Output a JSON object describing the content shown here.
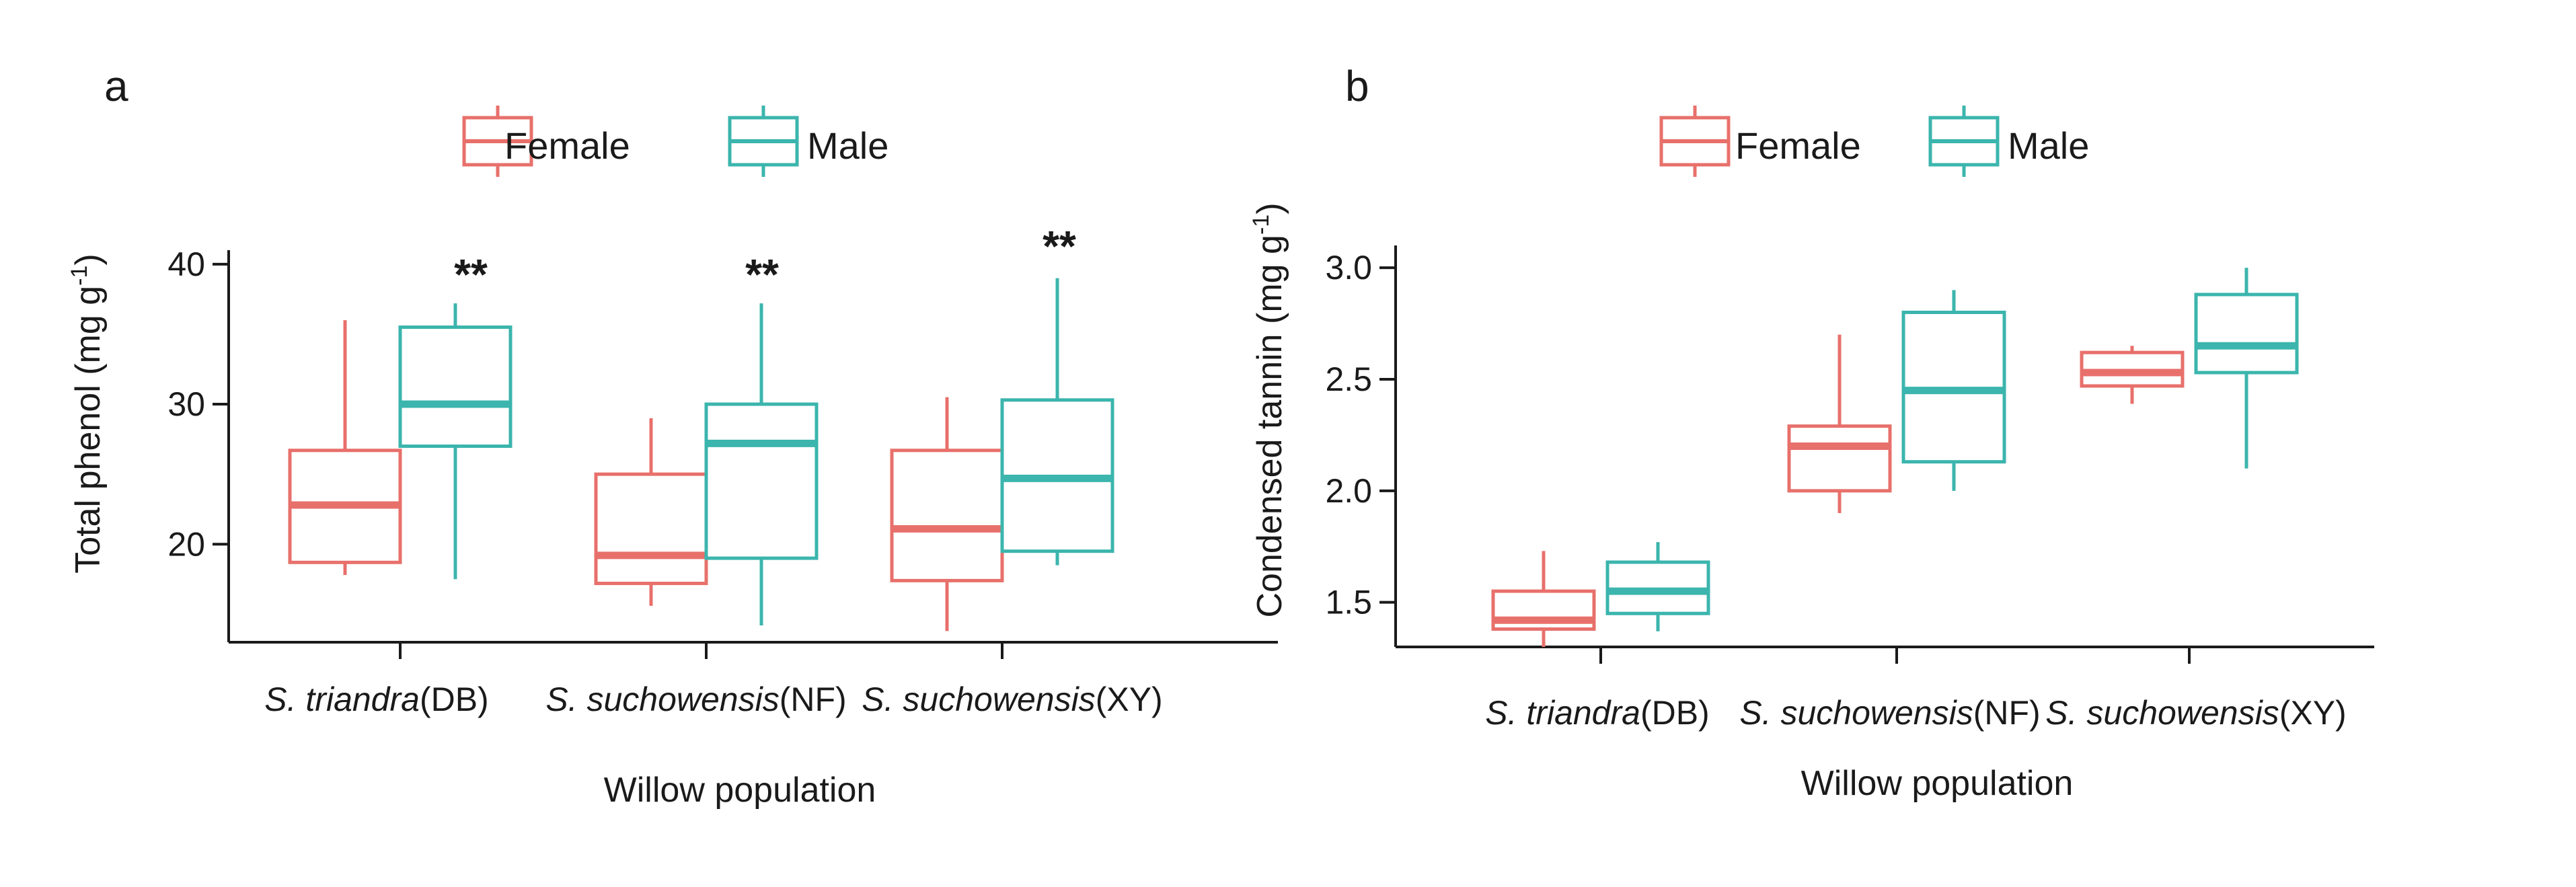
{
  "colors": {
    "female": "#e8706b",
    "male": "#3bb5ad",
    "axis": "#1a1a1a"
  },
  "chart_data": [
    {
      "type": "box",
      "panel_label": "a",
      "xlabel": "Willow population",
      "ylabel": "Total phenol (mg g",
      "ylabel_sup": "-1",
      "ylabel_close": ")",
      "ylim": [
        13,
        41
      ],
      "ticks": [
        20,
        30,
        40
      ],
      "tick_labels": [
        "20",
        "30",
        "40"
      ],
      "categories": [
        {
          "species": "S. triandra",
          "site": "(DB)"
        },
        {
          "species": "S. suchowensis",
          "site": "(NF)"
        },
        {
          "species": "S. suchowensis",
          "site": "(XY)"
        }
      ],
      "legend": [
        "Female",
        "Male"
      ],
      "series": [
        {
          "name": "Female",
          "boxes": [
            {
              "min": 17.8,
              "q1": 18.7,
              "median": 22.8,
              "q3": 26.7,
              "max": 36.0
            },
            {
              "min": 15.6,
              "q1": 17.2,
              "median": 19.2,
              "q3": 25.0,
              "max": 29.0
            },
            {
              "min": 13.8,
              "q1": 17.4,
              "median": 21.1,
              "q3": 26.7,
              "max": 30.5
            }
          ]
        },
        {
          "name": "Male",
          "boxes": [
            {
              "min": 17.5,
              "q1": 27.0,
              "median": 30.0,
              "q3": 35.5,
              "max": 37.2
            },
            {
              "min": 14.2,
              "q1": 19.0,
              "median": 27.2,
              "q3": 30.0,
              "max": 37.2
            },
            {
              "min": 18.5,
              "q1": 19.5,
              "median": 24.7,
              "q3": 30.3,
              "max": 39.0
            }
          ]
        }
      ],
      "annotations": [
        "**",
        "**",
        "**"
      ]
    },
    {
      "type": "box",
      "panel_label": "b",
      "xlabel": "Willow population",
      "ylabel": "Condensed tannin (mg g",
      "ylabel_sup": "-1",
      "ylabel_close": ")",
      "ylim": [
        1.3,
        3.1
      ],
      "ticks": [
        1.5,
        2.0,
        2.5,
        3.0
      ],
      "tick_labels": [
        "1.5",
        "2.0",
        "2.5",
        "3.0"
      ],
      "categories": [
        {
          "species": "S. triandra",
          "site": "(DB)"
        },
        {
          "species": "S. suchowensis",
          "site": "(NF)"
        },
        {
          "species": "S. suchowensis",
          "site": "(XY)"
        }
      ],
      "legend": [
        "Female",
        "Male"
      ],
      "series": [
        {
          "name": "Female",
          "boxes": [
            {
              "min": 1.3,
              "q1": 1.38,
              "median": 1.42,
              "q3": 1.55,
              "max": 1.73
            },
            {
              "min": 1.9,
              "q1": 2.0,
              "median": 2.2,
              "q3": 2.29,
              "max": 2.7
            },
            {
              "min": 2.39,
              "q1": 2.47,
              "median": 2.53,
              "q3": 2.62,
              "max": 2.65
            }
          ]
        },
        {
          "name": "Male",
          "boxes": [
            {
              "min": 1.37,
              "q1": 1.45,
              "median": 1.55,
              "q3": 1.68,
              "max": 1.77
            },
            {
              "min": 2.0,
              "q1": 2.13,
              "median": 2.45,
              "q3": 2.8,
              "max": 2.9
            },
            {
              "min": 2.1,
              "q1": 2.53,
              "median": 2.65,
              "q3": 2.88,
              "max": 3.0
            }
          ]
        }
      ],
      "annotations": []
    }
  ]
}
